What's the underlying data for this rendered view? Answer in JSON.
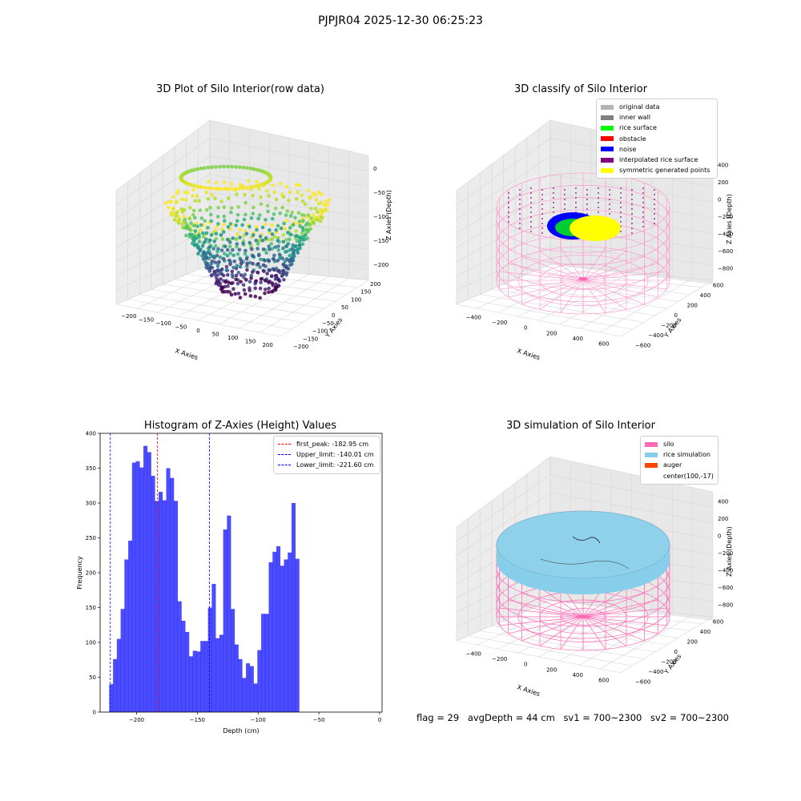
{
  "suptitle": "PJPJR04 2025-12-30 06:25:23",
  "panel1": {
    "title": "3D Plot of Silo Interior(row data)",
    "xlabel": "X Axies",
    "ylabel": "Y Axies",
    "zlabel": "Z Axies (Depth)",
    "xticks": [
      "−200",
      "−150",
      "−100",
      "−50",
      "0",
      "50",
      "100",
      "150",
      "200"
    ],
    "yticks": [
      "−200",
      "−150",
      "−100",
      "−50",
      "0",
      "50",
      "100",
      "150",
      "200"
    ],
    "zticks": [
      "0",
      "−50",
      "−100",
      "−150",
      "−200"
    ]
  },
  "panel2": {
    "title": "3D classify of Silo Interior",
    "xlabel": "X Axies",
    "ylabel": "Y Axies",
    "zlabel": "Z Axies (Depth)",
    "xticks": [
      "−400",
      "−200",
      "0",
      "200",
      "400",
      "600"
    ],
    "yticks": [
      "−600",
      "−400",
      "−200",
      "0",
      "200",
      "400",
      "600"
    ],
    "zticks": [
      "400",
      "200",
      "0",
      "−200",
      "−400",
      "−600",
      "−800"
    ],
    "legend": [
      {
        "label": "original data",
        "color": "#b3b3b3"
      },
      {
        "label": "inner wall",
        "color": "#808080"
      },
      {
        "label": "rice surface",
        "color": "#00ff00"
      },
      {
        "label": "obstacle",
        "color": "#ff0000"
      },
      {
        "label": "noise",
        "color": "#0000ff"
      },
      {
        "label": "interpolated rice surface",
        "color": "#800080"
      },
      {
        "label": "symmetric generated points",
        "color": "#ffff00"
      }
    ]
  },
  "panel3": {
    "title": "Histogram of Z-Axies (Height) Values",
    "legend": [
      {
        "label": "first_peak: -182.95 cm",
        "color": "#ff0000"
      },
      {
        "label": "Upper_limit: -140.01 cm",
        "color": "#0000ff"
      },
      {
        "label": "Lower_limit: -221.60 cm",
        "color": "#0000ff"
      }
    ]
  },
  "panel4": {
    "title": "3D simulation of Silo Interior",
    "xlabel": "X Axies",
    "ylabel": "Y Axies",
    "zlabel": "Z Axies (Depth)",
    "xticks": [
      "−400",
      "−200",
      "0",
      "200",
      "400",
      "600"
    ],
    "yticks": [
      "−600",
      "−400",
      "−200",
      "0",
      "200",
      "400",
      "600"
    ],
    "zticks": [
      "400",
      "200",
      "0",
      "−200",
      "−400",
      "−600",
      "−800"
    ],
    "legend": [
      {
        "label": "silo",
        "color": "#ff69b4"
      },
      {
        "label": "rice simulation",
        "color": "#87ceeb"
      },
      {
        "label": "auger",
        "color": "#ff4500"
      },
      {
        "label": "center(100,-17)",
        "color": "#ffffff"
      }
    ]
  },
  "status": {
    "flag": "flag = 29",
    "avg": "avgDepth = 44 cm",
    "sv1": "sv1 = 700~2300",
    "sv2": "sv2 = 700~2300"
  },
  "chart_data": [
    {
      "type": "scatter",
      "title": "3D Plot of Silo Interior(row data)",
      "xlabel": "X Axies",
      "ylabel": "Y Axies",
      "zlabel": "Z Axies (Depth)",
      "xlim": [
        -220,
        220
      ],
      "ylim": [
        -220,
        220
      ],
      "zlim": [
        -230,
        0
      ],
      "colormap": "viridis"
    },
    {
      "type": "scatter",
      "title": "3D classify of Silo Interior",
      "xlabel": "X Axies",
      "ylabel": "Y Axies",
      "zlabel": "Z Axies (Depth)",
      "xlim": [
        -500,
        700
      ],
      "ylim": [
        -700,
        700
      ],
      "zlim": [
        -900,
        400
      ]
    },
    {
      "type": "bar",
      "title": "Histogram of Z-Axies (Height) Values",
      "xlabel": "Depth (cm)",
      "ylabel": "Frequency",
      "xlim": [
        -230,
        2
      ],
      "ylim": [
        0,
        400
      ],
      "xticks": [
        -200,
        -150,
        -100,
        -50,
        0
      ],
      "yticks": [
        0,
        50,
        100,
        150,
        200,
        250,
        300,
        350,
        400
      ],
      "bar_color": "#0000ff",
      "bin_start": -222.5,
      "bin_width": 3.125,
      "values": [
        40,
        76,
        105,
        148,
        219,
        246,
        358,
        360,
        351,
        382,
        373,
        339,
        303,
        316,
        304,
        350,
        336,
        303,
        159,
        131,
        115,
        80,
        88,
        87,
        102,
        102,
        150,
        184,
        106,
        111,
        262,
        282,
        148,
        97,
        76,
        49,
        70,
        66,
        41,
        89,
        141,
        141,
        215,
        230,
        238,
        210,
        219,
        229,
        300,
        220
      ],
      "vlines": [
        {
          "label": "first_peak: -182.95 cm",
          "x": -182.95,
          "color": "#ff0000"
        },
        {
          "label": "Upper_limit: -140.01 cm",
          "x": -140.01,
          "color": "#0000ff"
        },
        {
          "label": "Lower_limit: -221.60 cm",
          "x": -221.6,
          "color": "#0000ff"
        }
      ],
      "legend_position": "top-right"
    },
    {
      "type": "scatter",
      "title": "3D simulation of Silo Interior",
      "xlabel": "X Axies",
      "ylabel": "Y Axies",
      "zlabel": "Z Axies (Depth)",
      "xlim": [
        -500,
        700
      ],
      "ylim": [
        -700,
        700
      ],
      "zlim": [
        -900,
        400
      ]
    }
  ]
}
